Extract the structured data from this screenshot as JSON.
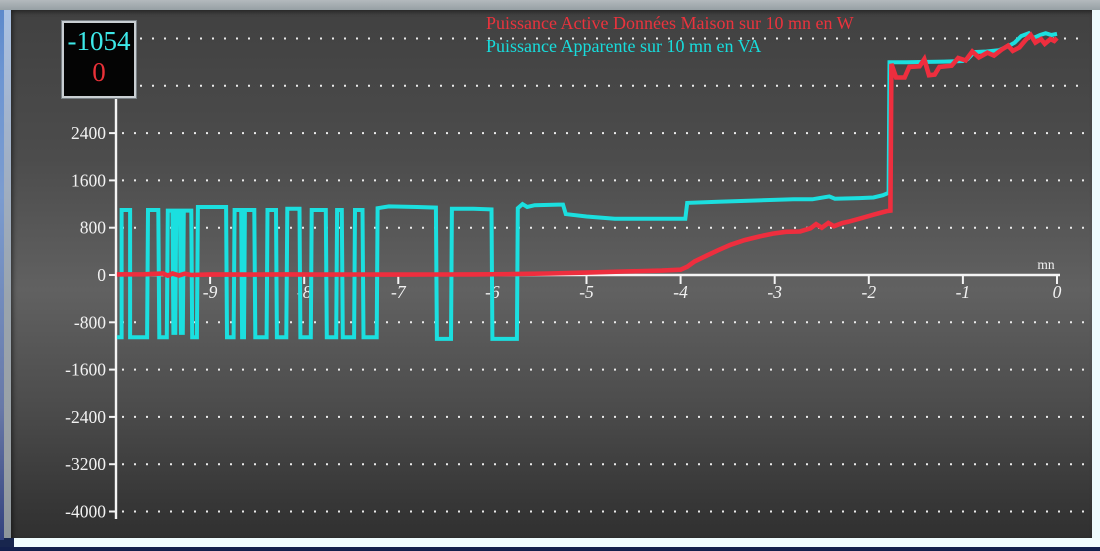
{
  "window": {
    "value_box": {
      "line1": "-1054",
      "line2": "0",
      "line1_color": "#3de9e9",
      "line2_color": "#ea3138"
    },
    "legend": [
      {
        "label": "Puissance Active Données Maison sur 10 mn en W",
        "color": "#ea333d"
      },
      {
        "label": "Puissance Apparente sur 10 mn en VA",
        "color": "#17dddd"
      }
    ]
  },
  "chart_data": {
    "type": "line",
    "title": "",
    "x_axis": {
      "label": "mn",
      "ticks": [
        -9,
        -8,
        -7,
        -6,
        -5,
        -4,
        -3,
        -2,
        -1,
        0
      ],
      "range": [
        -10,
        0.3
      ]
    },
    "y_axis": {
      "ticks": [
        2400,
        1600,
        800,
        0,
        -800,
        -1600,
        -2400,
        -3200,
        -4000
      ],
      "grid_values": [
        4000,
        3200,
        2400,
        1600,
        800,
        -800,
        -1600,
        -2400,
        -3200,
        -4000
      ],
      "range": [
        -4000,
        4400
      ]
    },
    "grid": "horizontal-dotted",
    "legend_position": "top-center",
    "series": [
      {
        "id": "apparent-power",
        "name": "Puissance Apparente sur 10 mn en VA",
        "unit": "VA",
        "color": "#1bdfdf",
        "points": [
          [
            -9.99,
            -1054
          ],
          [
            -9.94,
            -1054
          ],
          [
            -9.94,
            1100
          ],
          [
            -9.85,
            1100
          ],
          [
            -9.85,
            -1054
          ],
          [
            -9.67,
            -1054
          ],
          [
            -9.66,
            1100
          ],
          [
            -9.55,
            1100
          ],
          [
            -9.54,
            -1054
          ],
          [
            -9.46,
            -1054
          ],
          [
            -9.45,
            1090
          ],
          [
            -9.4,
            1090
          ],
          [
            -9.39,
            -980
          ],
          [
            -9.37,
            -980
          ],
          [
            -9.36,
            1090
          ],
          [
            -9.32,
            1090
          ],
          [
            -9.31,
            -980
          ],
          [
            -9.29,
            -980
          ],
          [
            -9.28,
            1090
          ],
          [
            -9.2,
            1090
          ],
          [
            -9.19,
            -1054
          ],
          [
            -9.14,
            -1054
          ],
          [
            -9.13,
            1150
          ],
          [
            -8.83,
            1150
          ],
          [
            -8.82,
            -1054
          ],
          [
            -8.75,
            -1054
          ],
          [
            -8.74,
            1100
          ],
          [
            -8.67,
            1100
          ],
          [
            -8.66,
            -1054
          ],
          [
            -8.64,
            -1054
          ],
          [
            -8.63,
            1100
          ],
          [
            -8.53,
            1100
          ],
          [
            -8.52,
            -1054
          ],
          [
            -8.4,
            -1054
          ],
          [
            -8.39,
            1100
          ],
          [
            -8.3,
            1100
          ],
          [
            -8.29,
            -1054
          ],
          [
            -8.19,
            -1054
          ],
          [
            -8.18,
            1120
          ],
          [
            -8.05,
            1120
          ],
          [
            -8.04,
            -1054
          ],
          [
            -7.93,
            -1054
          ],
          [
            -7.92,
            1100
          ],
          [
            -7.77,
            1100
          ],
          [
            -7.76,
            -1054
          ],
          [
            -7.66,
            -1054
          ],
          [
            -7.65,
            1100
          ],
          [
            -7.6,
            1100
          ],
          [
            -7.59,
            -1054
          ],
          [
            -7.47,
            -1054
          ],
          [
            -7.46,
            1100
          ],
          [
            -7.38,
            1100
          ],
          [
            -7.37,
            -1054
          ],
          [
            -7.23,
            -1054
          ],
          [
            -7.22,
            1130
          ],
          [
            -7.1,
            1160
          ],
          [
            -6.8,
            1150
          ],
          [
            -6.6,
            1140
          ],
          [
            -6.59,
            -1080
          ],
          [
            -6.44,
            -1080
          ],
          [
            -6.43,
            1120
          ],
          [
            -6.2,
            1120
          ],
          [
            -6.01,
            1110
          ],
          [
            -6.0,
            -1080
          ],
          [
            -5.74,
            -1080
          ],
          [
            -5.73,
            1130
          ],
          [
            -5.68,
            1200
          ],
          [
            -5.63,
            1150
          ],
          [
            -5.55,
            1180
          ],
          [
            -5.3,
            1190
          ],
          [
            -5.25,
            1190
          ],
          [
            -5.22,
            1030
          ],
          [
            -5.0,
            990
          ],
          [
            -4.7,
            950
          ],
          [
            -4.0,
            950
          ],
          [
            -3.95,
            950
          ],
          [
            -3.93,
            1220
          ],
          [
            -3.6,
            1240
          ],
          [
            -3.2,
            1260
          ],
          [
            -2.8,
            1280
          ],
          [
            -2.6,
            1280
          ],
          [
            -2.42,
            1330
          ],
          [
            -2.36,
            1290
          ],
          [
            -2.1,
            1300
          ],
          [
            -1.95,
            1310
          ],
          [
            -1.85,
            1350
          ],
          [
            -1.79,
            1390
          ],
          [
            -1.78,
            3600
          ],
          [
            -1.6,
            3600
          ],
          [
            -1.2,
            3610
          ],
          [
            -1.0,
            3620
          ],
          [
            -0.95,
            3650
          ],
          [
            -0.88,
            3770
          ],
          [
            -0.75,
            3780
          ],
          [
            -0.62,
            3800
          ],
          [
            -0.52,
            3870
          ],
          [
            -0.45,
            3930
          ],
          [
            -0.38,
            4040
          ],
          [
            -0.3,
            4090
          ],
          [
            -0.25,
            4010
          ],
          [
            -0.18,
            4060
          ],
          [
            -0.12,
            4090
          ],
          [
            -0.06,
            4060
          ],
          [
            0.0,
            4080
          ]
        ]
      },
      {
        "id": "active-power",
        "name": "Puissance Active Données Maison sur 10 mn en W",
        "unit": "W",
        "color": "#ee2e3e",
        "points": [
          [
            -9.99,
            10
          ],
          [
            -9.7,
            12
          ],
          [
            -9.5,
            25
          ],
          [
            -9.45,
            -10
          ],
          [
            -9.4,
            25
          ],
          [
            -9.33,
            -8
          ],
          [
            -9.27,
            22
          ],
          [
            -9.2,
            0
          ],
          [
            -9.0,
            10
          ],
          [
            -8.6,
            6
          ],
          [
            -8.2,
            10
          ],
          [
            -7.8,
            6
          ],
          [
            -7.4,
            8
          ],
          [
            -7.0,
            6
          ],
          [
            -6.6,
            8
          ],
          [
            -6.2,
            10
          ],
          [
            -5.8,
            15
          ],
          [
            -5.4,
            25
          ],
          [
            -5.0,
            40
          ],
          [
            -4.6,
            60
          ],
          [
            -4.2,
            75
          ],
          [
            -4.0,
            90
          ],
          [
            -3.93,
            140
          ],
          [
            -3.85,
            230
          ],
          [
            -3.72,
            330
          ],
          [
            -3.6,
            420
          ],
          [
            -3.47,
            510
          ],
          [
            -3.32,
            590
          ],
          [
            -3.17,
            650
          ],
          [
            -3.02,
            700
          ],
          [
            -2.88,
            730
          ],
          [
            -2.73,
            735
          ],
          [
            -2.62,
            790
          ],
          [
            -2.56,
            860
          ],
          [
            -2.5,
            800
          ],
          [
            -2.43,
            880
          ],
          [
            -2.37,
            825
          ],
          [
            -2.28,
            880
          ],
          [
            -2.22,
            900
          ],
          [
            -2.08,
            960
          ],
          [
            -1.95,
            1020
          ],
          [
            -1.81,
            1080
          ],
          [
            -1.77,
            1090
          ],
          [
            -1.76,
            3570
          ],
          [
            -1.71,
            3340
          ],
          [
            -1.62,
            3340
          ],
          [
            -1.57,
            3520
          ],
          [
            -1.46,
            3530
          ],
          [
            -1.41,
            3650
          ],
          [
            -1.36,
            3380
          ],
          [
            -1.3,
            3390
          ],
          [
            -1.25,
            3520
          ],
          [
            -1.12,
            3540
          ],
          [
            -1.05,
            3670
          ],
          [
            -0.97,
            3630
          ],
          [
            -0.9,
            3780
          ],
          [
            -0.83,
            3680
          ],
          [
            -0.74,
            3760
          ],
          [
            -0.67,
            3710
          ],
          [
            -0.59,
            3810
          ],
          [
            -0.52,
            3880
          ],
          [
            -0.47,
            3790
          ],
          [
            -0.4,
            3850
          ],
          [
            -0.33,
            3980
          ],
          [
            -0.28,
            4060
          ],
          [
            -0.23,
            3930
          ],
          [
            -0.17,
            3990
          ],
          [
            -0.13,
            3910
          ],
          [
            -0.07,
            3990
          ],
          [
            -0.03,
            3960
          ],
          [
            0.0,
            4010
          ]
        ]
      }
    ]
  }
}
